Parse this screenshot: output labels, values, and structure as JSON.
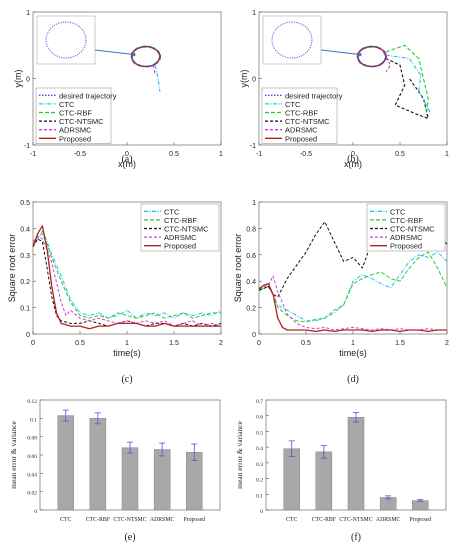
{
  "legend_common": {
    "ctc": "CTC",
    "ctc_rbf": "CTC-RBF",
    "ctc_ntsmc": "CTC-NTSMC",
    "adrsmc": "ADRSMC",
    "proposed": "Proposed",
    "desired": "desired trajectory"
  },
  "colors": {
    "desired": "#4b4bd8",
    "ctc": "#22c5e8",
    "ctc_rbf": "#2ccc2c",
    "ctc_ntsmc": "#111111",
    "adrsmc": "#d43cd4",
    "proposed": "#b52020",
    "bar": "#a8a8a8",
    "errbar": "#4a5ad0"
  },
  "chart_data": [
    {
      "id": "a",
      "type": "line",
      "panel_label": "(a)",
      "xlabel": "x(m)",
      "ylabel": "y(m)",
      "xlim": [
        -1,
        1
      ],
      "ylim": [
        -1,
        1
      ],
      "xticks": [
        "-1",
        "-0.5",
        "0",
        "0.5",
        "1"
      ],
      "yticks": [
        "-1",
        "0",
        "1"
      ],
      "legend": [
        "desired trajectory",
        "CTC",
        "CTC-RBF",
        "CTC-NTSMC",
        "ADRSMC",
        "Proposed"
      ],
      "legend_position": "lower-left",
      "inset": true
    },
    {
      "id": "b",
      "type": "line",
      "panel_label": "(b)",
      "xlabel": "x(m)",
      "ylabel": "y(m)",
      "xlim": [
        -1,
        1
      ],
      "ylim": [
        -1,
        1
      ],
      "xticks": [
        "-1",
        "-0.5",
        "0",
        "0.5",
        "1"
      ],
      "yticks": [
        "-1",
        "0",
        "1"
      ],
      "legend": [
        "desired trajectory",
        "CTC",
        "CTC-RBF",
        "CTC-NTSMC",
        "ADRSMC",
        "Proposed"
      ],
      "legend_position": "lower-left",
      "inset": true
    },
    {
      "id": "c",
      "type": "line",
      "panel_label": "(c)",
      "xlabel": "time(s)",
      "ylabel": "Square root error",
      "xlim": [
        0,
        2
      ],
      "ylim": [
        0,
        0.5
      ],
      "xticks": [
        "0",
        "0.5",
        "1",
        "1.5",
        "2"
      ],
      "yticks": [
        "0",
        "0.1",
        "0.2",
        "0.3",
        "0.4",
        "0.5"
      ],
      "legend": [
        "CTC",
        "CTC-RBF",
        "CTC-NTSMC",
        "ADRSMC",
        "Proposed"
      ],
      "legend_position": "top-right",
      "series": [
        {
          "name": "CTC",
          "x": [
            0,
            0.05,
            0.1,
            0.15,
            0.2,
            0.3,
            0.4,
            0.5,
            0.6,
            0.7,
            0.8,
            0.9,
            1.0,
            1.1,
            1.2,
            1.3,
            1.4,
            1.5,
            1.6,
            1.7,
            1.8,
            1.9,
            2.0
          ],
          "y": [
            0.33,
            0.36,
            0.39,
            0.35,
            0.3,
            0.22,
            0.13,
            0.08,
            0.07,
            0.08,
            0.06,
            0.07,
            0.09,
            0.06,
            0.08,
            0.07,
            0.08,
            0.06,
            0.08,
            0.07,
            0.08,
            0.07,
            0.09
          ]
        },
        {
          "name": "CTC-RBF",
          "x": [
            0,
            0.05,
            0.1,
            0.15,
            0.2,
            0.3,
            0.4,
            0.5,
            0.6,
            0.7,
            0.8,
            0.9,
            1.0,
            1.1,
            1.2,
            1.3,
            1.4,
            1.5,
            1.6,
            1.7,
            1.8,
            1.9,
            2.0
          ],
          "y": [
            0.34,
            0.37,
            0.38,
            0.34,
            0.29,
            0.2,
            0.12,
            0.07,
            0.06,
            0.07,
            0.06,
            0.08,
            0.07,
            0.06,
            0.07,
            0.08,
            0.06,
            0.07,
            0.08,
            0.06,
            0.07,
            0.08,
            0.08
          ]
        },
        {
          "name": "CTC-NTSMC",
          "x": [
            0,
            0.05,
            0.1,
            0.15,
            0.2,
            0.25,
            0.3,
            0.4,
            0.5,
            0.6,
            0.7,
            0.8,
            0.9,
            1.0,
            1.1,
            1.2,
            1.3,
            1.4,
            1.5,
            1.6,
            1.7,
            1.8,
            1.9,
            2.0
          ],
          "y": [
            0.33,
            0.36,
            0.35,
            0.25,
            0.14,
            0.07,
            0.05,
            0.04,
            0.04,
            0.05,
            0.04,
            0.03,
            0.04,
            0.05,
            0.04,
            0.03,
            0.04,
            0.04,
            0.03,
            0.04,
            0.03,
            0.04,
            0.03,
            0.04
          ]
        },
        {
          "name": "ADRSMC",
          "x": [
            0,
            0.05,
            0.1,
            0.15,
            0.2,
            0.3,
            0.35,
            0.4,
            0.5,
            0.6,
            0.7,
            0.8,
            0.9,
            1.0,
            1.1,
            1.2,
            1.3,
            1.4,
            1.5,
            1.6,
            1.7,
            1.8,
            1.9,
            2.0
          ],
          "y": [
            0.35,
            0.37,
            0.36,
            0.32,
            0.27,
            0.12,
            0.07,
            0.09,
            0.06,
            0.05,
            0.06,
            0.05,
            0.04,
            0.05,
            0.04,
            0.05,
            0.04,
            0.05,
            0.03,
            0.04,
            0.05,
            0.03,
            0.04,
            0.03
          ]
        },
        {
          "name": "Proposed",
          "x": [
            0,
            0.05,
            0.1,
            0.15,
            0.2,
            0.25,
            0.3,
            0.4,
            0.5,
            0.6,
            0.7,
            0.8,
            0.9,
            1.0,
            1.1,
            1.2,
            1.3,
            1.4,
            1.5,
            1.6,
            1.7,
            1.8,
            1.9,
            2.0
          ],
          "y": [
            0.33,
            0.38,
            0.41,
            0.32,
            0.18,
            0.08,
            0.04,
            0.03,
            0.03,
            0.02,
            0.03,
            0.03,
            0.04,
            0.04,
            0.04,
            0.03,
            0.03,
            0.04,
            0.03,
            0.03,
            0.03,
            0.03,
            0.03,
            0.03
          ]
        }
      ]
    },
    {
      "id": "d",
      "type": "line",
      "panel_label": "(d)",
      "xlabel": "time(s)",
      "ylabel": "Square root error",
      "xlim": [
        0,
        2
      ],
      "ylim": [
        0,
        1
      ],
      "xticks": [
        "0",
        "0.5",
        "1",
        "1.5",
        "2"
      ],
      "yticks": [
        "0",
        "0.2",
        "0.4",
        "0.6",
        "0.8",
        "1"
      ],
      "legend": [
        "CTC",
        "CTC-RBF",
        "CTC-NTSMC",
        "ADRSMC",
        "Proposed"
      ],
      "legend_position": "top-right",
      "series": [
        {
          "name": "CTC",
          "x": [
            0,
            0.1,
            0.15,
            0.2,
            0.3,
            0.4,
            0.5,
            0.6,
            0.7,
            0.8,
            0.9,
            1.0,
            1.1,
            1.2,
            1.3,
            1.4,
            1.5,
            1.6,
            1.7,
            1.8,
            1.9,
            2.0
          ],
          "y": [
            0.33,
            0.36,
            0.3,
            0.22,
            0.18,
            0.14,
            0.1,
            0.1,
            0.12,
            0.16,
            0.22,
            0.4,
            0.45,
            0.42,
            0.38,
            0.35,
            0.45,
            0.55,
            0.6,
            0.58,
            0.62,
            0.55
          ]
        },
        {
          "name": "CTC-RBF",
          "x": [
            0,
            0.1,
            0.15,
            0.2,
            0.3,
            0.4,
            0.5,
            0.6,
            0.7,
            0.8,
            0.9,
            1.0,
            1.1,
            1.2,
            1.3,
            1.4,
            1.5,
            1.6,
            1.7,
            1.8,
            1.9,
            2.0
          ],
          "y": [
            0.34,
            0.36,
            0.3,
            0.2,
            0.14,
            0.1,
            0.09,
            0.11,
            0.12,
            0.18,
            0.22,
            0.38,
            0.42,
            0.45,
            0.47,
            0.42,
            0.4,
            0.5,
            0.58,
            0.62,
            0.5,
            0.35
          ]
        },
        {
          "name": "CTC-NTSMC",
          "x": [
            0,
            0.1,
            0.15,
            0.2,
            0.3,
            0.4,
            0.5,
            0.6,
            0.7,
            0.8,
            0.9,
            1.0,
            1.1,
            1.2,
            1.3,
            1.4,
            1.5,
            1.6,
            1.7,
            1.8,
            1.9,
            2.0
          ],
          "y": [
            0.33,
            0.36,
            0.3,
            0.28,
            0.42,
            0.52,
            0.62,
            0.75,
            0.85,
            0.7,
            0.55,
            0.58,
            0.5,
            0.7,
            0.8,
            0.77,
            0.72,
            0.75,
            0.73,
            0.78,
            0.75,
            0.68
          ]
        },
        {
          "name": "ADRSMC",
          "x": [
            0,
            0.1,
            0.15,
            0.2,
            0.3,
            0.4,
            0.5,
            0.6,
            0.7,
            0.8,
            0.9,
            1.0,
            1.1,
            1.2,
            1.3,
            1.4,
            1.5,
            1.6,
            1.7,
            1.8,
            1.9,
            2.0
          ],
          "y": [
            0.35,
            0.37,
            0.44,
            0.32,
            0.15,
            0.08,
            0.05,
            0.04,
            0.05,
            0.03,
            0.04,
            0.05,
            0.04,
            0.03,
            0.04,
            0.03,
            0.04,
            0.03,
            0.03,
            0.04,
            0.03,
            0.03
          ]
        },
        {
          "name": "Proposed",
          "x": [
            0,
            0.05,
            0.1,
            0.15,
            0.2,
            0.25,
            0.3,
            0.4,
            0.5,
            0.6,
            0.7,
            0.8,
            0.9,
            1.0,
            1.1,
            1.2,
            1.3,
            1.4,
            1.5,
            1.6,
            1.7,
            1.8,
            1.9,
            2.0
          ],
          "y": [
            0.34,
            0.37,
            0.38,
            0.3,
            0.12,
            0.05,
            0.03,
            0.03,
            0.03,
            0.02,
            0.03,
            0.02,
            0.03,
            0.03,
            0.03,
            0.02,
            0.03,
            0.03,
            0.02,
            0.03,
            0.03,
            0.02,
            0.03,
            0.03
          ]
        }
      ]
    },
    {
      "id": "e",
      "type": "bar",
      "panel_label": "(e)",
      "ylabel": "mean error & variance",
      "categories": [
        "CTC",
        "CTC-RBF",
        "CTC-NTSMC",
        "ADRSMC",
        "Proposed"
      ],
      "values": [
        0.103,
        0.1,
        0.068,
        0.066,
        0.063
      ],
      "errors": [
        0.006,
        0.006,
        0.006,
        0.007,
        0.009
      ],
      "ylim": [
        0,
        0.12
      ],
      "yticks": [
        "0",
        "0.02",
        "0.04",
        "0.06",
        "0.08",
        "0.1",
        "0.12"
      ]
    },
    {
      "id": "f",
      "type": "bar",
      "panel_label": "(f)",
      "ylabel": "mean error & variance",
      "categories": [
        "CTC",
        "CTC-RBF",
        "CTC-NTSMC",
        "ADRSMC",
        "Proposed"
      ],
      "values": [
        0.39,
        0.37,
        0.59,
        0.08,
        0.06
      ],
      "errors": [
        0.05,
        0.04,
        0.03,
        0.01,
        0.006
      ],
      "ylim": [
        0,
        0.7
      ],
      "yticks": [
        "0",
        "0.1",
        "0.2",
        "0.3",
        "0.4",
        "0.5",
        "0.6",
        "0.7"
      ]
    }
  ]
}
